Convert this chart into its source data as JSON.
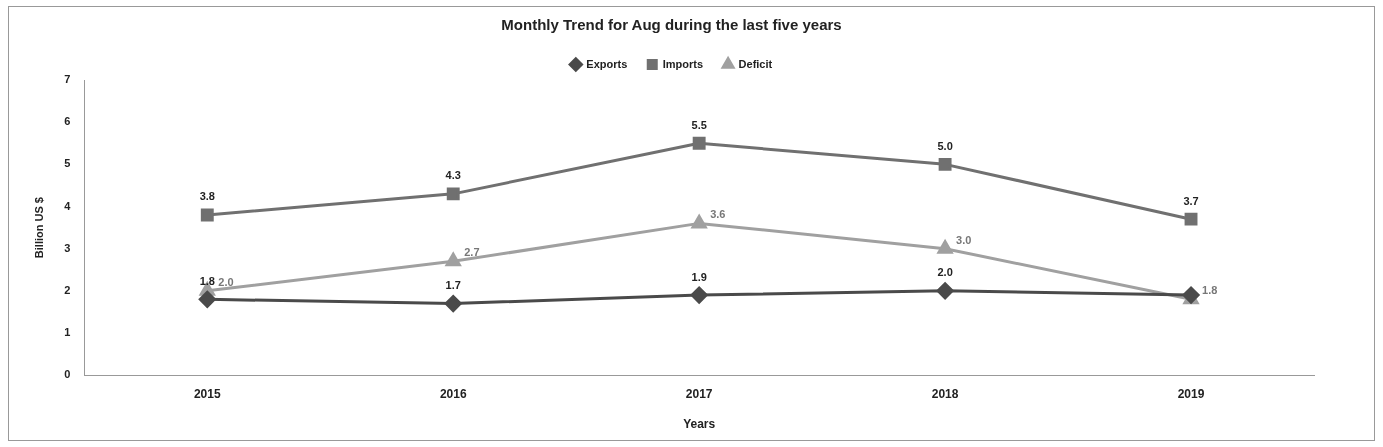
{
  "chart_data": {
    "type": "line",
    "title": "Monthly Trend for Aug during the last five years",
    "xlabel": "Years",
    "ylabel": "Billion US $",
    "categories": [
      "2015",
      "2016",
      "2017",
      "2018",
      "2019"
    ],
    "series": [
      {
        "name": "Exports",
        "color": "#4a4a4a",
        "marker": "diamond",
        "values": [
          1.8,
          1.7,
          1.9,
          2.0,
          1.9
        ],
        "value_labels": [
          "1.8",
          "1.7",
          "1.9",
          "2.0",
          null
        ]
      },
      {
        "name": "Imports",
        "color": "#707070",
        "marker": "square",
        "values": [
          3.8,
          4.3,
          5.5,
          5.0,
          3.7
        ],
        "value_labels": [
          "3.8",
          "4.3",
          "5.5",
          "5.0",
          "3.7"
        ]
      },
      {
        "name": "Deficit",
        "color": "#a0a0a0",
        "marker": "triangle",
        "values": [
          2.0,
          2.7,
          3.6,
          3.0,
          1.8
        ],
        "value_labels": [
          "2.0",
          "2.7",
          "3.6",
          "3.0",
          "1.8"
        ]
      }
    ],
    "ylim": [
      0,
      7
    ],
    "yticks": [
      0,
      1,
      2,
      3,
      4,
      5,
      6,
      7
    ],
    "grid": false,
    "legend": "top"
  }
}
